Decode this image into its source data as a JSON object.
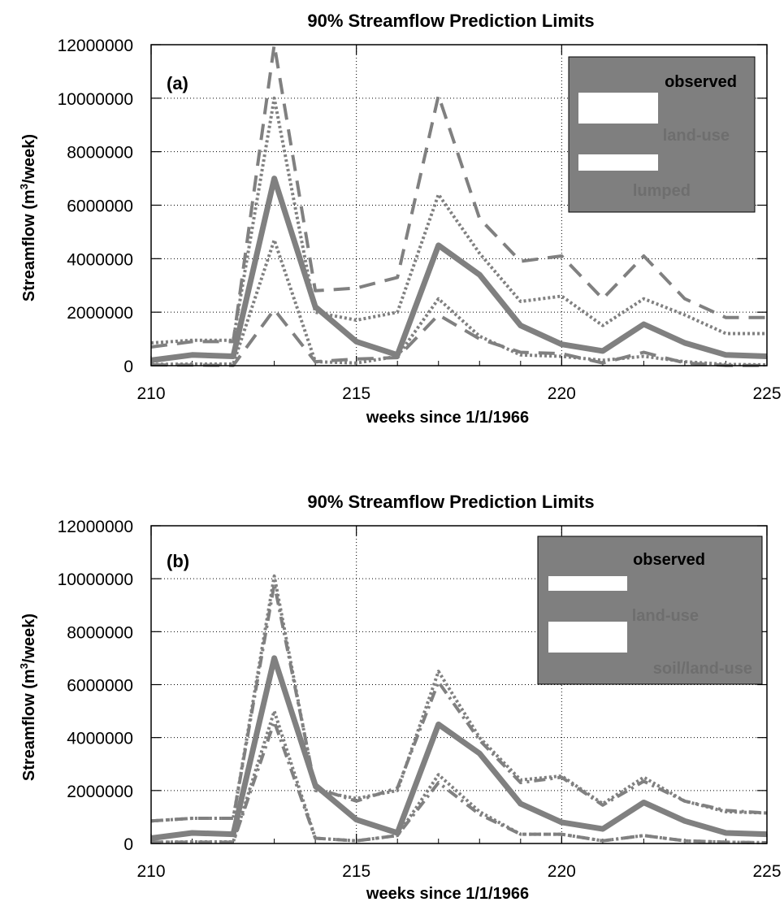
{
  "chart_data": [
    {
      "type": "line",
      "title": "90% Streamflow Prediction Limits",
      "panel_label": "(a)",
      "xlabel": "weeks since 1/1/1966",
      "ylabel_main": "Streamflow (m",
      "ylabel_sup": "3",
      "ylabel_tail": "/week)",
      "xlim": [
        210,
        225
      ],
      "ylim": [
        0,
        12000000
      ],
      "x_ticks": [
        210,
        215,
        220,
        225
      ],
      "y_ticks": [
        0,
        2000000,
        4000000,
        6000000,
        8000000,
        10000000,
        12000000
      ],
      "grid": true,
      "legend_position": "top-right",
      "x": [
        210,
        211,
        212,
        213,
        214,
        215,
        216,
        217,
        218,
        219,
        220,
        221,
        222,
        223,
        224,
        225
      ],
      "series": [
        {
          "name": "observed",
          "style": "solid",
          "role": "observed",
          "values": [
            200000,
            400000,
            350000,
            7000000,
            2200000,
            900000,
            400000,
            4500000,
            3400000,
            1500000,
            800000,
            550000,
            1550000,
            850000,
            400000,
            350000
          ]
        },
        {
          "name": "land-use",
          "style": "dotted",
          "role": "upper",
          "values": [
            850000,
            950000,
            950000,
            10000000,
            2000000,
            1700000,
            2000000,
            6400000,
            4200000,
            2400000,
            2600000,
            1500000,
            2500000,
            1900000,
            1200000,
            1200000
          ]
        },
        {
          "name": "land-use",
          "style": "dotted",
          "role": "lower",
          "values": [
            50000,
            60000,
            60000,
            4700000,
            150000,
            100000,
            350000,
            2500000,
            1100000,
            400000,
            350000,
            200000,
            350000,
            150000,
            50000,
            30000
          ]
        },
        {
          "name": "lumped",
          "style": "dashed",
          "role": "upper",
          "values": [
            700000,
            900000,
            900000,
            12000000,
            2800000,
            2900000,
            3300000,
            10100000,
            5500000,
            3900000,
            4100000,
            2500000,
            4100000,
            2500000,
            1800000,
            1800000
          ]
        },
        {
          "name": "lumped",
          "style": "dashed",
          "role": "lower",
          "values": [
            30000,
            20000,
            10000,
            2100000,
            150000,
            250000,
            300000,
            1900000,
            1000000,
            500000,
            450000,
            100000,
            500000,
            100000,
            10000,
            10000
          ]
        }
      ]
    },
    {
      "type": "line",
      "title": "90% Streamflow Prediction Limits",
      "panel_label": "(b)",
      "xlabel": "weeks since 1/1/1966",
      "ylabel_main": "Streamflow (m",
      "ylabel_sup": "3",
      "ylabel_tail": "/week)",
      "xlim": [
        210,
        225
      ],
      "ylim": [
        0,
        12000000
      ],
      "x_ticks": [
        210,
        215,
        220,
        225
      ],
      "y_ticks": [
        0,
        2000000,
        4000000,
        6000000,
        8000000,
        10000000,
        12000000
      ],
      "grid": true,
      "legend_position": "top-right",
      "x": [
        210,
        211,
        212,
        213,
        214,
        215,
        216,
        217,
        218,
        219,
        220,
        221,
        222,
        223,
        224,
        225
      ],
      "series": [
        {
          "name": "observed",
          "style": "solid",
          "role": "observed",
          "values": [
            200000,
            400000,
            350000,
            7000000,
            2200000,
            900000,
            400000,
            4500000,
            3400000,
            1500000,
            800000,
            550000,
            1550000,
            850000,
            400000,
            350000
          ]
        },
        {
          "name": "land-use",
          "style": "dotted",
          "role": "upper",
          "values": [
            850000,
            950000,
            950000,
            10100000,
            2000000,
            1700000,
            2000000,
            6500000,
            4000000,
            2400000,
            2550000,
            1500000,
            2500000,
            1600000,
            1200000,
            1150000
          ]
        },
        {
          "name": "land-use",
          "style": "dotted",
          "role": "lower",
          "values": [
            50000,
            60000,
            60000,
            5000000,
            200000,
            100000,
            300000,
            2600000,
            1200000,
            350000,
            350000,
            100000,
            300000,
            100000,
            50000,
            30000
          ]
        },
        {
          "name": "soil/land-use",
          "style": "dashdot",
          "role": "upper",
          "values": [
            850000,
            950000,
            950000,
            9800000,
            2100000,
            1600000,
            2100000,
            6100000,
            3900000,
            2300000,
            2500000,
            1450000,
            2350000,
            1600000,
            1250000,
            1150000
          ]
        },
        {
          "name": "soil/land-use",
          "style": "dashdot",
          "role": "lower",
          "values": [
            50000,
            50000,
            50000,
            4600000,
            200000,
            100000,
            300000,
            2300000,
            1100000,
            350000,
            350000,
            100000,
            300000,
            100000,
            50000,
            30000
          ]
        }
      ]
    }
  ],
  "colors": {
    "series": "#808080",
    "legend_bg": "#7f7f7f",
    "legend_swatch": "#ffffff",
    "observed_label": "#000000",
    "other_label": "#6e6e6e",
    "grid": "#000000"
  }
}
